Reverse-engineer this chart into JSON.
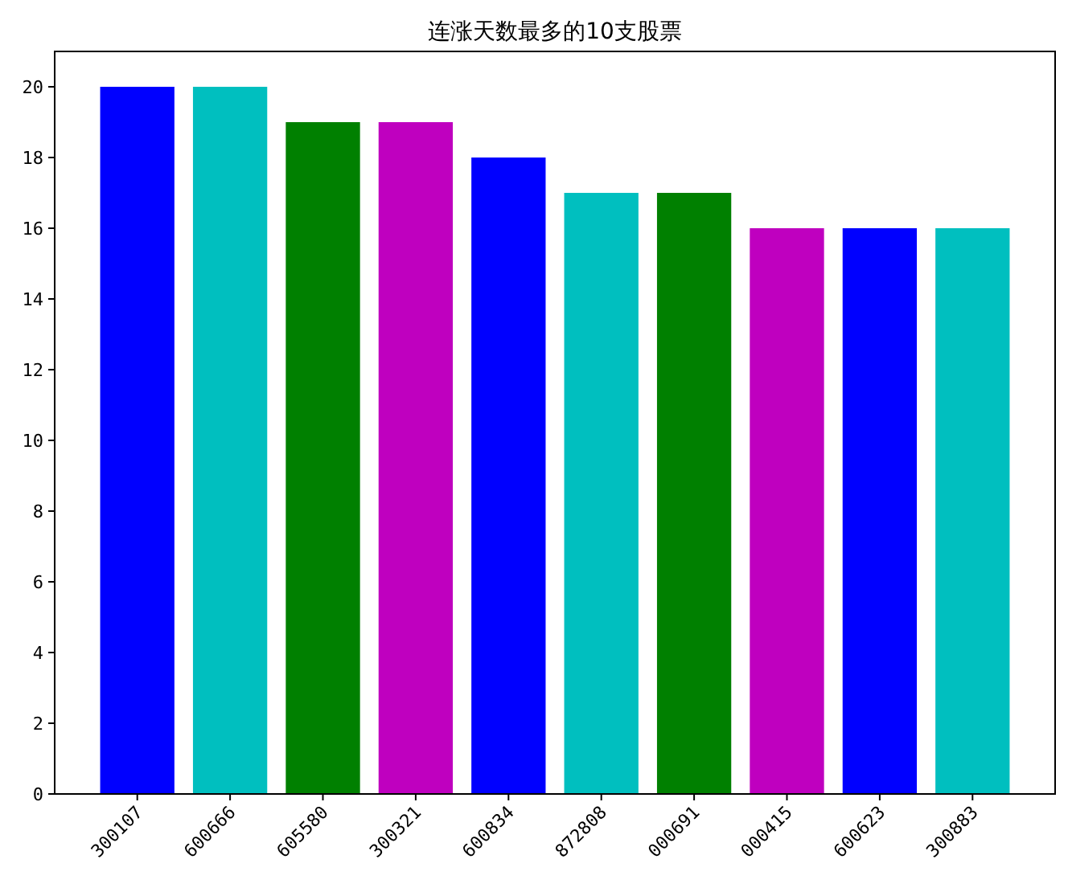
{
  "chart_data": {
    "type": "bar",
    "title": "连涨天数最多的10支股票",
    "categories": [
      "300107",
      "600666",
      "605580",
      "300321",
      "600834",
      "872808",
      "000691",
      "000415",
      "600623",
      "300883"
    ],
    "values": [
      20,
      20,
      19,
      19,
      18,
      17,
      17,
      16,
      16,
      16
    ],
    "colors": [
      "#0000ff",
      "#00bfbf",
      "#008000",
      "#bf00bf",
      "#0000ff",
      "#00bfbf",
      "#008000",
      "#bf00bf",
      "#0000ff",
      "#00bfbf"
    ],
    "ylim": [
      0,
      21
    ],
    "yticks": [
      0,
      2,
      4,
      6,
      8,
      10,
      12,
      14,
      16,
      18,
      20
    ],
    "grid": false
  }
}
